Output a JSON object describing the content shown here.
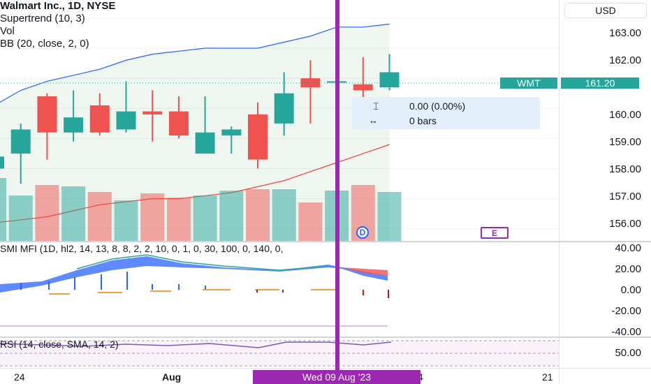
{
  "legend": {
    "symbol_title": "Walmart Inc., 1D, NYSE",
    "supertrend": "Supertrend (10, 3)",
    "vol": "Vol",
    "bb": "BB (20, close, 2, 0)"
  },
  "currency_button": "USD",
  "price_axis": {
    "labels": [
      "163.00",
      "162.00",
      "161.20",
      "160.00",
      "159.00",
      "158.00",
      "157.00",
      "156.00"
    ]
  },
  "last_price_tag": {
    "symbol": "WMT",
    "price": "161.20",
    "color": "#26a69a"
  },
  "measure_tooltip": {
    "price_change": "0.00 (0.00%)",
    "bars": "0 bars"
  },
  "event_markers": [
    {
      "letter": "D",
      "color": "#2962ff",
      "icon": "dividend-icon"
    },
    {
      "letter": "E",
      "color": "#9c27b0",
      "icon": "earnings-icon"
    }
  ],
  "smi_panel": {
    "title": "SMI MFI (1D, hl2, 14, 13, 8, 8, 2, 2, 10, 0, 1, 0, 30, 100, 0, 140, 0,",
    "axis_labels": [
      "40.00",
      "20.00",
      "0.00",
      "-20.00",
      "-40.00"
    ]
  },
  "rsi_panel": {
    "title": "RSI (14, close, SMA, 14, 2)",
    "axis_labels": [
      "50.00"
    ]
  },
  "time_axis": {
    "labels": [
      "24",
      "Aug",
      "4",
      "21"
    ]
  },
  "crosshair_date": "Wed 09 Aug '23",
  "colors": {
    "up": "#26a69a",
    "down": "#ef5350",
    "crosshair": "#9c27b0",
    "bb_band": "#2962ff",
    "ma": "#f44336"
  },
  "chart_data": {
    "type": "candlestick",
    "candles": [
      {
        "o": 158.0,
        "h": 158.4,
        "l": 157.6,
        "c": 158.4
      },
      {
        "o": 158.5,
        "h": 159.5,
        "l": 157.5,
        "c": 159.3
      },
      {
        "o": 160.4,
        "h": 160.5,
        "l": 158.3,
        "c": 159.2
      },
      {
        "o": 159.2,
        "h": 160.6,
        "l": 158.9,
        "c": 159.7
      },
      {
        "o": 160.1,
        "h": 160.5,
        "l": 159.1,
        "c": 159.2
      },
      {
        "o": 159.3,
        "h": 160.9,
        "l": 159.2,
        "c": 159.9
      },
      {
        "o": 159.9,
        "h": 160.6,
        "l": 158.9,
        "c": 159.8
      },
      {
        "o": 159.9,
        "h": 160.4,
        "l": 159.0,
        "c": 159.1
      },
      {
        "o": 158.5,
        "h": 160.4,
        "l": 158.5,
        "c": 159.2
      },
      {
        "o": 159.1,
        "h": 159.4,
        "l": 158.5,
        "c": 159.3
      },
      {
        "o": 159.8,
        "h": 160.2,
        "l": 158.0,
        "c": 158.3
      },
      {
        "o": 159.5,
        "h": 161.2,
        "l": 159.1,
        "c": 160.5
      },
      {
        "o": 161.0,
        "h": 161.6,
        "l": 159.5,
        "c": 160.7
      },
      {
        "o": 160.9,
        "h": 160.9,
        "l": 160.9,
        "c": 160.9
      },
      {
        "o": 160.8,
        "h": 161.7,
        "l": 159.9,
        "c": 160.6
      },
      {
        "o": 160.7,
        "h": 161.8,
        "l": 160.6,
        "c": 161.2
      }
    ],
    "volume": [
      0.9,
      0.65,
      0.8,
      0.78,
      0.7,
      0.58,
      0.68,
      0.62,
      0.65,
      0.72,
      0.74,
      0.74,
      0.55,
      0.72,
      0.8,
      0.7
    ],
    "bb_upper": [
      160.1,
      160.6,
      160.9,
      161.1,
      161.3,
      161.6,
      161.8,
      161.9,
      162.0,
      162.0,
      162.0,
      162.2,
      162.4,
      162.7,
      162.7,
      162.8
    ],
    "ma": [
      156.2,
      156.3,
      156.4,
      156.6,
      156.8,
      156.9,
      157.0,
      157.0,
      157.1,
      157.2,
      157.4,
      157.6,
      157.9,
      158.2,
      158.5,
      158.8
    ],
    "y_range": [
      155.6,
      163.6
    ]
  }
}
